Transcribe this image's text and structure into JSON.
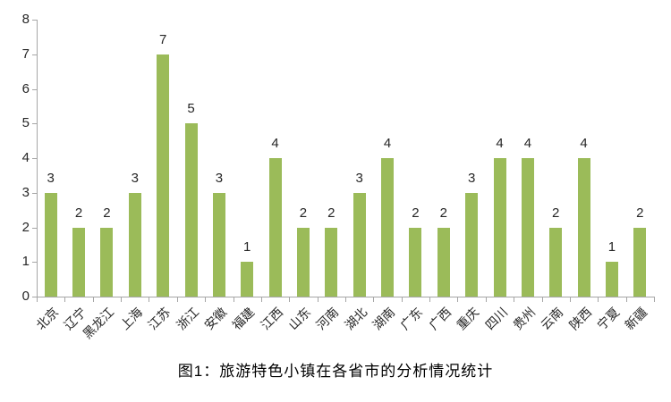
{
  "figure": {
    "caption": "图1：旅游特色小镇在各省市的分析情况统计"
  },
  "chart_data": {
    "type": "bar",
    "title": "图1：旅游特色小镇在各省市的分析情况统计",
    "categories": [
      "北京",
      "辽宁",
      "黑龙江",
      "上海",
      "江苏",
      "浙江",
      "安徽",
      "福建",
      "江西",
      "山东",
      "河南",
      "湖北",
      "湖南",
      "广东",
      "广西",
      "重庆",
      "四川",
      "贵州",
      "云南",
      "陕西",
      "宁夏",
      "新疆"
    ],
    "values": [
      3,
      2,
      2,
      3,
      7,
      5,
      3,
      1,
      4,
      2,
      2,
      3,
      4,
      2,
      2,
      3,
      4,
      4,
      2,
      4,
      1,
      2
    ],
    "xlabel": "",
    "ylabel": "",
    "ylim": [
      0,
      8
    ],
    "yticks": [
      0,
      1,
      2,
      3,
      4,
      5,
      6,
      7,
      8
    ],
    "grid": false,
    "legend": "none",
    "bar_labels_visible": true,
    "x_label_rotation_deg": 45,
    "colors": {
      "bar_fill": "#9BBB59",
      "axis": "#A6A6A6",
      "tick_text": "#262626",
      "caption_text": "#000000",
      "background": "#FFFFFF"
    }
  }
}
